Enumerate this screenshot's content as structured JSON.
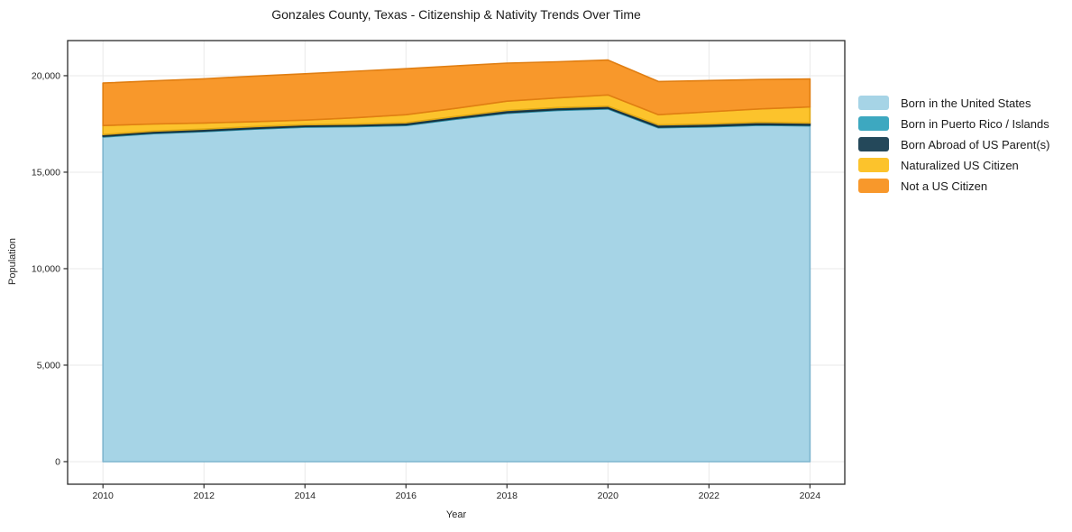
{
  "chart_data": {
    "type": "area",
    "stacked": true,
    "title": "Gonzales County, Texas - Citizenship & Nativity Trends Over Time",
    "xlabel": "Year",
    "ylabel": "Population",
    "x": [
      2010,
      2011,
      2012,
      2013,
      2014,
      2015,
      2016,
      2017,
      2018,
      2019,
      2020,
      2021,
      2022,
      2023,
      2024
    ],
    "series": [
      {
        "name": "Born in the United States",
        "color": "#a6d4e6",
        "edge": "#7fb6cf",
        "values": [
          16820,
          17000,
          17100,
          17230,
          17330,
          17360,
          17420,
          17750,
          18050,
          18200,
          18280,
          17300,
          17350,
          17430,
          17400
        ]
      },
      {
        "name": "Born in Puerto Rico / Islands",
        "color": "#3da8c0",
        "edge": "#2b8ba3",
        "values": [
          40,
          40,
          40,
          40,
          40,
          40,
          40,
          40,
          40,
          40,
          40,
          40,
          40,
          40,
          40
        ]
      },
      {
        "name": "Born Abroad of US Parent(s)",
        "color": "#24485a",
        "edge": "#16303d",
        "values": [
          90,
          90,
          90,
          90,
          90,
          90,
          100,
          100,
          110,
          110,
          100,
          110,
          110,
          110,
          110
        ]
      },
      {
        "name": "Naturalized US Citizen",
        "color": "#fcc32c",
        "edge": "#e0a714",
        "values": [
          470,
          370,
          320,
          260,
          240,
          330,
          420,
          420,
          480,
          500,
          580,
          530,
          630,
          700,
          830
        ]
      },
      {
        "name": "Not a US Citizen",
        "color": "#f8982b",
        "edge": "#e07e12",
        "values": [
          2200,
          2230,
          2290,
          2360,
          2400,
          2410,
          2380,
          2200,
          1970,
          1870,
          1810,
          1720,
          1620,
          1520,
          1450
        ]
      }
    ],
    "x_ticks": [
      2010,
      2012,
      2014,
      2016,
      2018,
      2020,
      2022,
      2024
    ],
    "x_tick_labels": [
      "2010",
      "2012",
      "2014",
      "2016",
      "2018",
      "2020",
      "2022",
      "2024"
    ],
    "y_ticks": [
      0,
      5000,
      10000,
      15000,
      20000
    ],
    "y_tick_labels": [
      "0",
      "5,000",
      "10,000",
      "15,000",
      "20,000"
    ],
    "xlim": [
      2009.3,
      2024.69
    ],
    "ylim": [
      -1170,
      21820
    ],
    "grid": true,
    "legend_position": "right",
    "grid_color": "#e9e9e9",
    "frame_color": "#2b2b2b",
    "tick_text_color": "#262626"
  }
}
